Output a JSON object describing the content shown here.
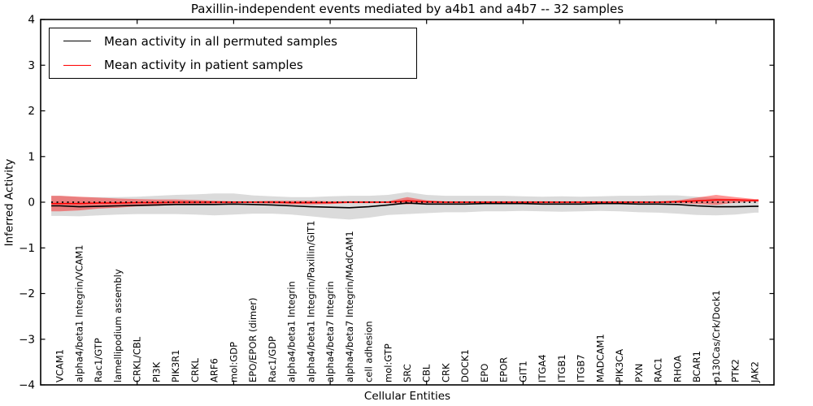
{
  "chart_data": {
    "type": "line",
    "title": "Paxillin-independent events mediated by a4b1 and a4b7 -- 32 samples",
    "xlabel": "Cellular Entities",
    "ylabel": "Inferred Activity",
    "ylim": [
      -4,
      4
    ],
    "yticks": [
      -4,
      -3,
      -2,
      -1,
      0,
      1,
      2,
      3,
      4
    ],
    "xtick_positions": [
      5,
      10,
      15,
      20,
      25,
      30,
      35
    ],
    "grid": false,
    "legend_position": "upper left",
    "zero_line": {
      "y": 0,
      "style": "dotted",
      "color": "#000000"
    },
    "categories": [
      "VCAM1",
      "alpha4/beta1 Integrin/VCAM1",
      "Rac1/GTP",
      "lamellipodium assembly",
      "CRKL/CBL",
      "PI3K",
      "PIK3R1",
      "CRKL",
      "ARF6",
      "mol:GDP",
      "EPO/EPOR (dimer)",
      "Rac1/GDP",
      "alpha4/beta1 Integrin",
      "alpha4/beta1 Integrin/Paxillin/GIT1",
      "alpha4/beta7 Integrin",
      "alpha4/beta7 Integrin/MAdCAM1",
      "cell adhesion",
      "mol:GTP",
      "SRC",
      "CBL",
      "CRK",
      "DOCK1",
      "EPO",
      "EPOR",
      "GIT1",
      "ITGA4",
      "ITGB1",
      "ITGB7",
      "MADCAM1",
      "PIK3CA",
      "PXN",
      "RAC1",
      "RHOA",
      "BCAR1",
      "p130Cas/Crk/Dock1",
      "PTK2",
      "JAK2"
    ],
    "series": [
      {
        "name": "Mean activity in all permuted samples",
        "color": "#000000",
        "band_color": "#888888",
        "band_opacity": 0.3,
        "values": [
          -0.08,
          -0.1,
          -0.09,
          -0.08,
          -0.07,
          -0.06,
          -0.05,
          -0.05,
          -0.05,
          -0.04,
          -0.05,
          -0.06,
          -0.08,
          -0.1,
          -0.11,
          -0.12,
          -0.1,
          -0.06,
          -0.02,
          -0.04,
          -0.04,
          -0.04,
          -0.03,
          -0.03,
          -0.03,
          -0.04,
          -0.04,
          -0.04,
          -0.03,
          -0.03,
          -0.04,
          -0.04,
          -0.05,
          -0.08,
          -0.1,
          -0.1,
          -0.09
        ],
        "std": [
          0.22,
          0.21,
          0.2,
          0.19,
          0.19,
          0.2,
          0.21,
          0.22,
          0.24,
          0.23,
          0.2,
          0.19,
          0.19,
          0.21,
          0.24,
          0.26,
          0.24,
          0.22,
          0.24,
          0.2,
          0.18,
          0.18,
          0.17,
          0.17,
          0.16,
          0.16,
          0.17,
          0.16,
          0.16,
          0.17,
          0.18,
          0.19,
          0.2,
          0.2,
          0.19,
          0.17,
          0.14
        ]
      },
      {
        "name": "Mean activity in patient samples",
        "color": "#ff0000",
        "band_color": "#ff0000",
        "band_opacity": 0.42,
        "values": [
          -0.03,
          -0.03,
          -0.02,
          -0.02,
          -0.01,
          -0.01,
          0.0,
          0.0,
          0.0,
          0.0,
          0.0,
          0.0,
          -0.01,
          -0.01,
          -0.01,
          0.0,
          0.0,
          0.0,
          0.03,
          0.01,
          0.0,
          0.0,
          0.0,
          0.0,
          0.0,
          0.0,
          0.0,
          0.0,
          0.0,
          0.0,
          0.0,
          0.0,
          0.01,
          0.03,
          0.05,
          0.05,
          0.04
        ],
        "std": [
          0.17,
          0.15,
          0.12,
          0.1,
          0.08,
          0.07,
          0.06,
          0.05,
          0.03,
          0.02,
          0.02,
          0.03,
          0.04,
          0.04,
          0.03,
          0.02,
          0.02,
          0.02,
          0.08,
          0.03,
          0.02,
          0.02,
          0.02,
          0.02,
          0.02,
          0.02,
          0.02,
          0.02,
          0.02,
          0.02,
          0.02,
          0.02,
          0.03,
          0.07,
          0.11,
          0.06,
          0.03
        ]
      }
    ]
  }
}
